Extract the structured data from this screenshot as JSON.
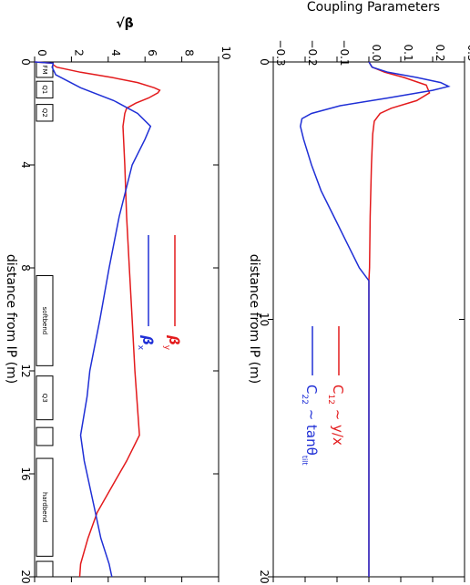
{
  "chart_data": [
    {
      "type": "line",
      "title": "Coupling Parameters",
      "xlabel": "distance from IP (m)",
      "ylabel": "",
      "xlim": [
        0,
        20
      ],
      "ylim": [
        -0.3,
        0.3
      ],
      "x_ticks": [
        "0",
        "10",
        "20"
      ],
      "y_ticks": [
        "−0.3",
        "−0.2",
        "−0.1",
        "0.0",
        "0.1",
        "0.2",
        "0.3"
      ],
      "orientation": "rotated 90° clockwise",
      "grid": false,
      "legend_position": "center",
      "series": [
        {
          "name": "C12 ~ y/x",
          "legend_main": "C",
          "legend_sub": "12",
          "legend_rest": "~ y/x",
          "color": "#e31a1c",
          "points": [
            [
              0,
              0.0
            ],
            [
              0.2,
              0.01
            ],
            [
              0.4,
              0.05
            ],
            [
              0.6,
              0.11
            ],
            [
              0.9,
              0.18
            ],
            [
              1.2,
              0.19
            ],
            [
              1.5,
              0.15
            ],
            [
              1.8,
              0.07
            ],
            [
              2.0,
              0.035
            ],
            [
              2.3,
              0.017
            ],
            [
              2.8,
              0.012
            ],
            [
              4,
              0.008
            ],
            [
              6,
              0.004
            ],
            [
              8,
              0.002
            ],
            [
              8.5,
              0.0
            ],
            [
              20,
              0.0
            ]
          ]
        },
        {
          "name": "C22 ~ tanθtilt",
          "legend_main": "C",
          "legend_sub": "22",
          "legend_rest": "~ tanθ",
          "legend_rest_sub": "tilt",
          "color": "#1f2fd6",
          "points": [
            [
              0,
              0.0
            ],
            [
              0.2,
              0.01
            ],
            [
              0.4,
              0.06
            ],
            [
              0.6,
              0.15
            ],
            [
              0.8,
              0.225
            ],
            [
              0.95,
              0.25
            ],
            [
              1.1,
              0.2
            ],
            [
              1.4,
              0.06
            ],
            [
              1.7,
              -0.09
            ],
            [
              2.0,
              -0.18
            ],
            [
              2.2,
              -0.21
            ],
            [
              2.5,
              -0.215
            ],
            [
              3,
              -0.205
            ],
            [
              4,
              -0.18
            ],
            [
              5,
              -0.15
            ],
            [
              6,
              -0.11
            ],
            [
              7,
              -0.07
            ],
            [
              8,
              -0.03
            ],
            [
              8.5,
              0.0
            ],
            [
              20,
              0.0
            ]
          ]
        }
      ]
    },
    {
      "type": "line",
      "title": "",
      "ylabel": "√β",
      "xlabel": "distance from IP (m)",
      "xlim": [
        0,
        20
      ],
      "ylim": [
        0,
        10
      ],
      "x_ticks": [
        "0",
        "4",
        "8",
        "12",
        "16",
        "20"
      ],
      "y_ticks": [
        "0",
        "2",
        "4",
        "6",
        "8",
        "10"
      ],
      "orientation": "rotated 90° clockwise",
      "grid": false,
      "legend_position": "center",
      "series": [
        {
          "name": "βy",
          "legend_main": "β",
          "legend_sub": "y",
          "color": "#e31a1c",
          "points": [
            [
              0,
              0.0
            ],
            [
              0.05,
              1.0
            ],
            [
              0.1,
              1.0
            ],
            [
              0.2,
              1.2
            ],
            [
              0.4,
              2.5
            ],
            [
              0.6,
              4.2
            ],
            [
              0.8,
              5.6
            ],
            [
              1.0,
              6.5
            ],
            [
              1.1,
              6.8
            ],
            [
              1.2,
              6.7
            ],
            [
              1.4,
              6.2
            ],
            [
              1.6,
              5.5
            ],
            [
              1.8,
              5.0
            ],
            [
              2.0,
              4.9
            ],
            [
              2.5,
              4.8
            ],
            [
              4,
              4.9
            ],
            [
              6,
              5.0
            ],
            [
              8,
              5.15
            ],
            [
              10,
              5.3
            ],
            [
              12,
              5.45
            ],
            [
              13,
              5.55
            ],
            [
              14.5,
              5.7
            ],
            [
              15.5,
              5.0
            ],
            [
              16.5,
              4.2
            ],
            [
              17.5,
              3.4
            ],
            [
              18.5,
              2.9
            ],
            [
              19.5,
              2.5
            ],
            [
              20,
              2.45
            ]
          ]
        },
        {
          "name": "βx",
          "legend_main": "β",
          "legend_sub": "x",
          "color": "#1f2fd6",
          "points": [
            [
              0,
              0.0
            ],
            [
              0.05,
              1.0
            ],
            [
              0.1,
              1.0
            ],
            [
              0.2,
              0.95
            ],
            [
              0.5,
              1.15
            ],
            [
              1.0,
              2.5
            ],
            [
              1.5,
              4.3
            ],
            [
              2.0,
              5.6
            ],
            [
              2.5,
              6.3
            ],
            [
              3,
              6.0
            ],
            [
              4,
              5.3
            ],
            [
              6,
              4.6
            ],
            [
              8,
              4.05
            ],
            [
              10,
              3.55
            ],
            [
              12,
              3.0
            ],
            [
              13,
              2.85
            ],
            [
              14.5,
              2.5
            ],
            [
              15.5,
              2.7
            ],
            [
              16.5,
              3.0
            ],
            [
              17.5,
              3.3
            ],
            [
              18.5,
              3.6
            ],
            [
              19.5,
              4.05
            ],
            [
              20,
              4.2
            ]
          ]
        }
      ]
    }
  ],
  "magnet_elements": [
    {
      "label": "FM",
      "s0": 0.0,
      "s1": 0.6
    },
    {
      "label": "Q1",
      "s0": 0.75,
      "s1": 1.4
    },
    {
      "label": "Q2",
      "s0": 1.65,
      "s1": 2.3
    },
    {
      "label": "softbend",
      "s0": 8.3,
      "s1": 11.8
    },
    {
      "label": "Q3",
      "s0": 12.2,
      "s1": 13.9
    },
    {
      "label": "",
      "s0": 14.2,
      "s1": 14.9
    },
    {
      "label": "hardbend",
      "s0": 15.4,
      "s1": 19.2
    },
    {
      "label": "",
      "s0": 19.4,
      "s1": 20.0
    }
  ]
}
